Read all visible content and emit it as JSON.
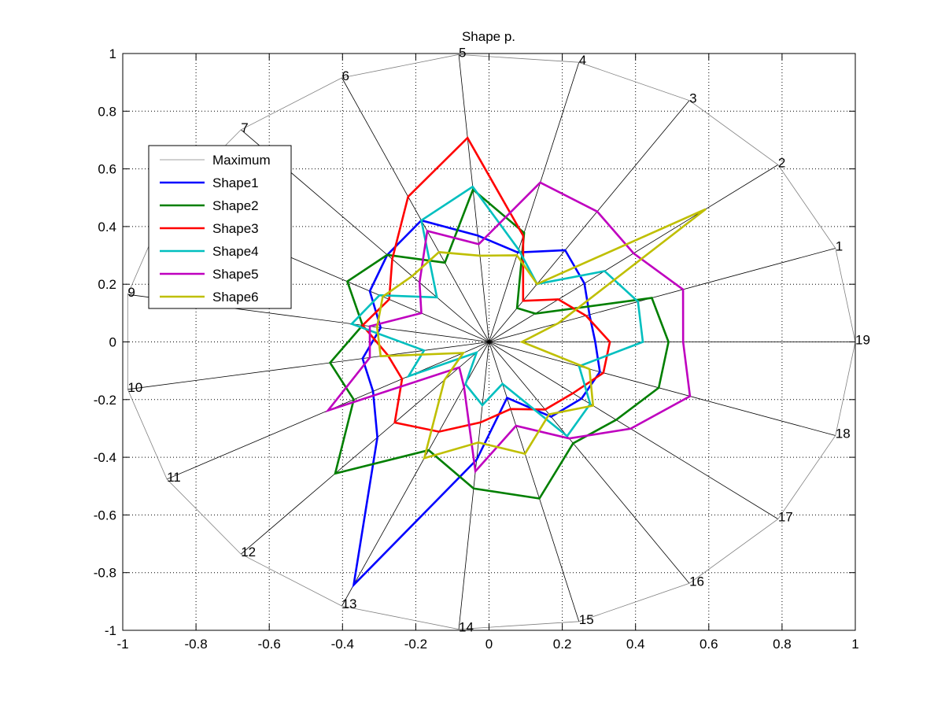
{
  "chart_data": {
    "type": "radar",
    "title": "Shape p.",
    "xlabel": "",
    "ylabel": "",
    "xlim": [
      -1,
      1
    ],
    "ylim": [
      -1,
      1
    ],
    "xticks": [
      -1,
      -0.8,
      -0.6,
      -0.4,
      -0.2,
      0,
      0.2,
      0.4,
      0.6,
      0.8,
      1
    ],
    "yticks": [
      -1,
      -0.8,
      -0.6,
      -0.4,
      -0.2,
      0,
      0.2,
      0.4,
      0.6,
      0.8,
      1
    ],
    "xtick_labels": [
      "-1",
      "-0.8",
      "-0.6",
      "-0.4",
      "-0.2",
      "0",
      "0.2",
      "0.4",
      "0.6",
      "0.8",
      "1"
    ],
    "ytick_labels": [
      "-1",
      "-0.8",
      "-0.6",
      "-0.4",
      "-0.2",
      "0",
      "0.2",
      "0.4",
      "0.6",
      "0.8",
      "1"
    ],
    "grid": true,
    "legend_position": "upper-left",
    "axes": [
      "1",
      "2",
      "3",
      "4",
      "5",
      "6",
      "7",
      "8",
      "9",
      "10",
      "11",
      "12",
      "13",
      "14",
      "15",
      "16",
      "17",
      "18",
      "19"
    ],
    "series": [
      {
        "name": "Maximum",
        "color": "#808080",
        "values": [
          1,
          1,
          1,
          1,
          1,
          1,
          1,
          1,
          1,
          1,
          1,
          1,
          1,
          1,
          1,
          1,
          1,
          1,
          1
        ]
      },
      {
        "name": "Shape1",
        "color": "#0000ff",
        "values": [
          0.29,
          0.33,
          0.38,
          0.32,
          0.37,
          0.46,
          0.41,
          0.37,
          0.3,
          0.35,
          0.36,
          0.45,
          0.92,
          0.41,
          0.2,
          0.31,
          0.32,
          0.32,
          0.29
        ]
      },
      {
        "name": "Shape2",
        "color": "#007f00",
        "values": [
          0.47,
          0.16,
          0.14,
          0.39,
          0.53,
          0.3,
          0.41,
          0.44,
          0.35,
          0.44,
          0.42,
          0.62,
          0.41,
          0.51,
          0.56,
          0.42,
          0.44,
          0.49,
          0.49
        ]
      },
      {
        "name": "Shape3",
        "color": "#ff0000",
        "values": [
          0.28,
          0.24,
          0.17,
          0.38,
          0.71,
          0.55,
          0.39,
          0.31,
          0.35,
          0.28,
          0.27,
          0.38,
          0.34,
          0.28,
          0.24,
          0.28,
          0.29,
          0.33,
          0.33
        ]
      },
      {
        "name": "Shape4",
        "color": "#00bfbf",
        "values": [
          0.43,
          0.4,
          0.24,
          0.33,
          0.54,
          0.46,
          0.21,
          0.34,
          0.38,
          0.18,
          0.25,
          0.05,
          0.16,
          0.22,
          0.15,
          0.39,
          0.35,
          0.26,
          0.42
        ]
      },
      {
        "name": "Shape5",
        "color": "#bf00bf",
        "values": [
          0.56,
          0.5,
          0.54,
          0.57,
          0.34,
          0.42,
          0.28,
          0.21,
          0.33,
          0.33,
          0.5,
          0.12,
          0.17,
          0.45,
          0.3,
          0.4,
          0.49,
          0.58,
          0.53
        ]
      },
      {
        "name": "Shape6",
        "color": "#bfbf00",
        "values": [
          0.2,
          0.75,
          0.24,
          0.31,
          0.3,
          0.34,
          0.31,
          0.33,
          0.31,
          0.3,
          0.08,
          0.18,
          0.44,
          0.35,
          0.4,
          0.3,
          0.36,
          0.29,
          0.09
        ]
      }
    ]
  }
}
